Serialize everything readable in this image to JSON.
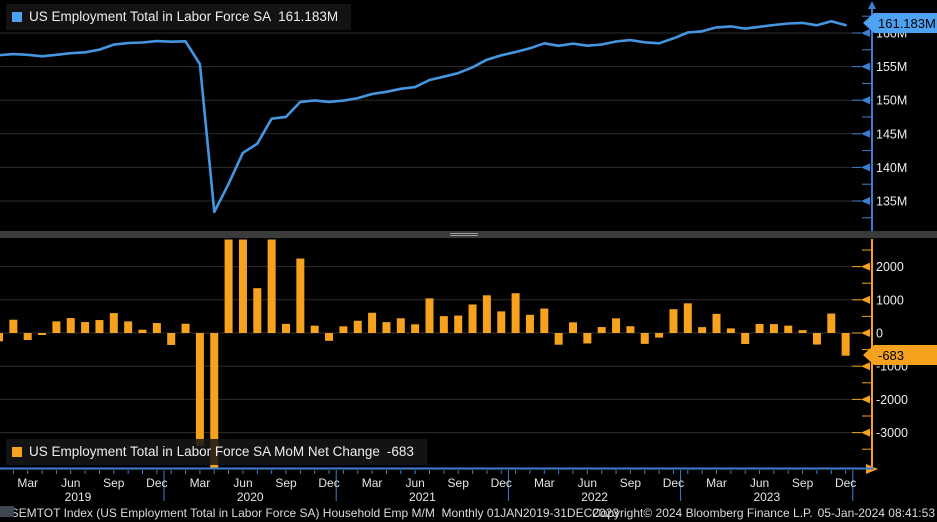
{
  "colors": {
    "background": "#000000",
    "line_blue": "#4596e0",
    "swatch_blue": "#4da2f4",
    "axis_blue": "#3e7ed2",
    "bar_orange": "#f6a21f",
    "axis_orange": "#f6a21f",
    "grid": "#2d2d2d",
    "tick_text": "#ededed",
    "xlabel_text": "#e4e4e4"
  },
  "top_legend": {
    "label": "US Employment Total in Labor Force SA",
    "value": "161.183M"
  },
  "bottom_legend": {
    "label": "US Employment Total in Labor Force SA MoM Net Change",
    "value": "-683"
  },
  "top_badge": "161.183M",
  "bottom_badge": "-683",
  "x_axis": {
    "months": [
      "Mar",
      "Jun",
      "Sep",
      "Dec",
      "Mar",
      "Jun",
      "Sep",
      "Dec",
      "Mar",
      "Jun",
      "Sep",
      "Dec",
      "Mar",
      "Jun",
      "Sep",
      "Dec",
      "Mar",
      "Jun",
      "Sep",
      "Dec"
    ],
    "years": [
      "2019",
      "2020",
      "2021",
      "2022",
      "2023"
    ]
  },
  "status_bar": {
    "left": "USEMTOT Index (US Employment Total in Labor Force SA) Household Emp M/M  Monthly 01JAN2019-31DEC2023",
    "center": "Copyright© 2024 Bloomberg Finance L.P.",
    "right": "05-Jan-2024 08:41:53"
  },
  "chart_data": [
    {
      "type": "line",
      "title": "US Employment Total in Labor Force SA",
      "unit": "millions of persons",
      "x_start": "Jan 2019",
      "x_end": "Dec 2023",
      "frequency": "monthly",
      "values": [
        156.69,
        156.86,
        156.75,
        156.54,
        156.76,
        157.0,
        157.13,
        157.53,
        158.27,
        158.51,
        158.59,
        158.8,
        158.71,
        158.76,
        155.35,
        133.37,
        137.56,
        142.18,
        143.53,
        147.24,
        147.51,
        149.75,
        149.97,
        149.74,
        149.94,
        150.31,
        150.92,
        151.25,
        151.69,
        151.95,
        153.0,
        153.5,
        154.03,
        154.89,
        156.03,
        156.68,
        157.17,
        157.72,
        158.46,
        158.1,
        158.42,
        158.11,
        158.29,
        158.73,
        158.94,
        158.61,
        158.47,
        159.19,
        160.08,
        160.26,
        160.84,
        160.98,
        160.65,
        160.92,
        161.19,
        161.41,
        161.5,
        161.15,
        161.74,
        161.183
      ],
      "last_value_label": "161.183M",
      "ylim": [
        130.7,
        164.0
      ],
      "yticks": [
        {
          "v": 160,
          "label": "160M"
        },
        {
          "v": 155,
          "label": "155M"
        },
        {
          "v": 150,
          "label": "150M"
        },
        {
          "v": 145,
          "label": "145M"
        },
        {
          "v": 140,
          "label": "140M"
        },
        {
          "v": 135,
          "label": "135M"
        }
      ],
      "grid": true,
      "legend_position": "top-left",
      "axis_side": "right"
    },
    {
      "type": "bar",
      "title": "US Employment Total in Labor Force SA MoM Net Change",
      "unit": "thousands of persons",
      "x_start": "Jan 2019",
      "x_end": "Dec 2023",
      "frequency": "monthly",
      "values": [
        -250,
        400,
        -210,
        -60,
        350,
        450,
        330,
        390,
        600,
        350,
        100,
        300,
        -360,
        280,
        -3400,
        -21980,
        4185,
        4615,
        1350,
        3706,
        275,
        2243,
        221,
        -236,
        201,
        369,
        609,
        328,
        444,
        262,
        1043,
        509,
        526,
        859,
        1136,
        651,
        1199,
        548,
        736,
        -353,
        321,
        -315,
        179,
        442,
        204,
        -328,
        -138,
        717,
        894,
        177,
        577,
        139,
        -331,
        273,
        268,
        222,
        86,
        -348,
        586,
        -683
      ],
      "last_value_label": "-683",
      "ylim": [
        -4000,
        2830
      ],
      "yticks": [
        {
          "v": 2000,
          "label": "2000"
        },
        {
          "v": 1000,
          "label": "1000"
        },
        {
          "v": 0,
          "label": "0"
        },
        {
          "v": -1000,
          "label": "-1000"
        },
        {
          "v": -2000,
          "label": "-2000"
        },
        {
          "v": -3000,
          "label": "-3000"
        }
      ],
      "grid": true,
      "legend_position": "bottom-left",
      "axis_side": "right",
      "clipped_to_panel": true
    }
  ]
}
